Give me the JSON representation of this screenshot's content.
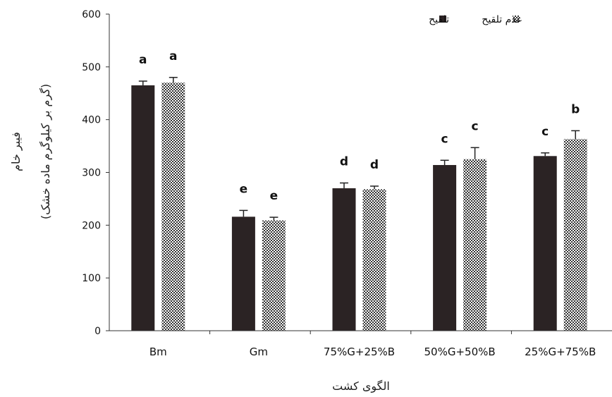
{
  "chart_data": {
    "type": "bar",
    "title": "",
    "xlabel": "الگوی کشت",
    "ylabel": "فیبر خام",
    "ylabel_unit": "(گرم بر کیلوگرم ماده خشک)",
    "ylim": [
      0,
      600
    ],
    "yticks": [
      0,
      100,
      200,
      300,
      400,
      500,
      600
    ],
    "categories": [
      "Bm",
      "Gm",
      "75%G+25%B",
      "50%G+50%B",
      "25%G+75%B"
    ],
    "series": [
      {
        "name": "تلقیح",
        "values": [
          465,
          216,
          270,
          314,
          331
        ],
        "errors": [
          8,
          12,
          10,
          9,
          6
        ],
        "letters": [
          "a",
          "e",
          "d",
          "c",
          "c"
        ],
        "color": "#2b2324"
      },
      {
        "name": "عدم تلقیح",
        "values": [
          470,
          209,
          268,
          325,
          363
        ],
        "errors": [
          10,
          6,
          6,
          22,
          16
        ],
        "letters": [
          "a",
          "e",
          "d",
          "c",
          "b"
        ],
        "color": "#ffffff"
      }
    ],
    "legend_position": "top-right",
    "grid": false
  }
}
